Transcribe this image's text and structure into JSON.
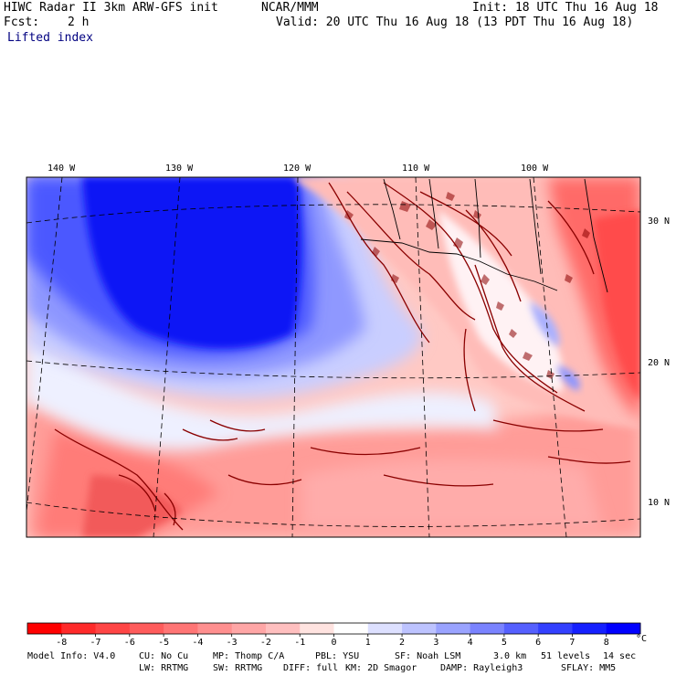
{
  "header": {
    "title": "HIWC Radar II 3km ARW-GFS init",
    "org": "NCAR/MMM",
    "init": "Init: 18 UTC Thu 16 Aug 18",
    "fcst_label": "Fcst:",
    "fcst_value": "2 h",
    "valid": "Valid: 20 UTC Thu 16 Aug 18 (13 PDT Thu 16 Aug 18)",
    "field": "Lifted index"
  },
  "map": {
    "lon_labels": [
      "140 W",
      "130 W",
      "120 W",
      "110 W",
      "100 W"
    ],
    "lat_labels": [
      "30 N",
      "20 N",
      "10 N"
    ]
  },
  "colorbar": {
    "ticks": [
      "-8",
      "-7",
      "-6",
      "-5",
      "-4",
      "-3",
      "-2",
      "-1",
      "0",
      "1",
      "2",
      "3",
      "4",
      "5",
      "6",
      "7",
      "8"
    ],
    "unit": "°C",
    "colors": [
      "#ff0000",
      "#ff2a2a",
      "#ff4545",
      "#ff5c5c",
      "#ff7575",
      "#ff8f8f",
      "#ffa6a6",
      "#ffbfbf",
      "#ffe3e0",
      "#ffffff",
      "#dde0ff",
      "#bdc3ff",
      "#9aa3ff",
      "#7a83ff",
      "#5560ff",
      "#3340ff",
      "#1520ff",
      "#0000ff"
    ]
  },
  "footer": {
    "line1": [
      "Model Info: V4.0",
      "CU: No Cu",
      "MP: Thomp C/A",
      "PBL: YSU",
      "SF: Noah LSM",
      "3.0 km",
      "51 levels",
      "14 sec"
    ],
    "line2": [
      "LW: RRTMG",
      "SW: RRTMG",
      "DIFF: full",
      "KM: 2D Smagor",
      "DAMP: Rayleigh3",
      "SFLAY: MM5"
    ]
  }
}
